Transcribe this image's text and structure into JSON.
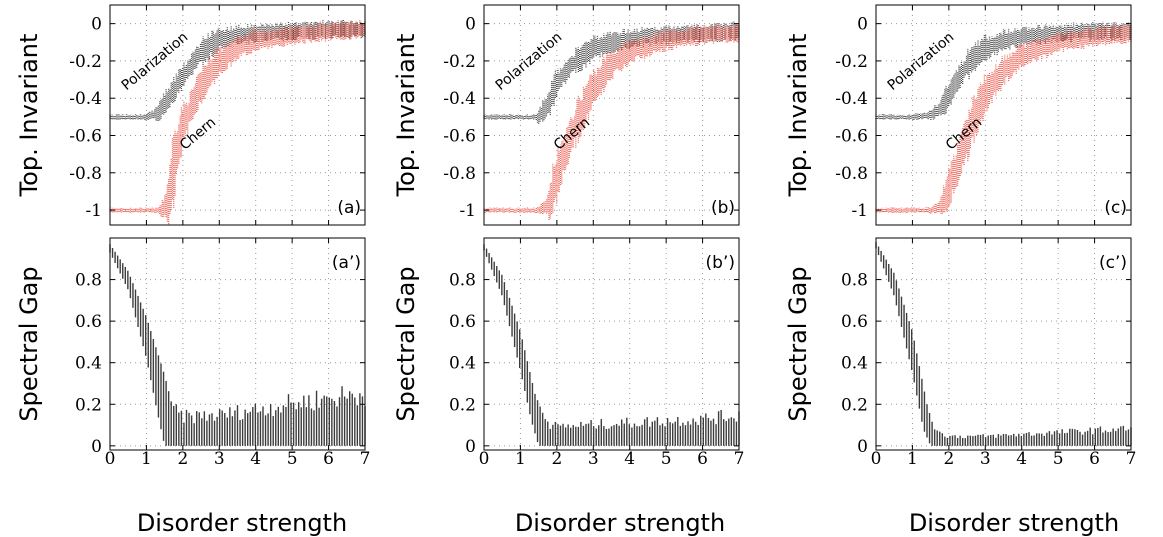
{
  "figure": {
    "xlabel": "Disorder strength"
  },
  "colors": {
    "polarization": "#4a4a4a",
    "chern": "#f0655a",
    "gap": "#3c3c3c",
    "grid": "#9a9a9a"
  },
  "chart_data": [
    {
      "panel": "(a)",
      "type": "scatter",
      "ylabel": "Top. Invariant",
      "xlim": [
        0,
        7
      ],
      "ylim": [
        -1.08,
        0.1
      ],
      "xticks": [
        "0",
        "1",
        "2",
        "3",
        "4",
        "5",
        "6",
        "7"
      ],
      "yticks": [
        "0",
        "-0.2",
        "-0.4",
        "-0.6",
        "-0.8",
        "-1"
      ],
      "annotations": [
        "Polarization",
        "Chern"
      ],
      "grid": true,
      "series": [
        {
          "key": "polarization",
          "x": [
            0,
            0.5,
            1.0,
            1.3,
            1.6,
            2.0,
            2.5,
            3.0,
            3.5,
            4.0,
            5.0,
            6.0,
            7.0
          ],
          "y": [
            -0.5,
            -0.5,
            -0.5,
            -0.48,
            -0.4,
            -0.28,
            -0.15,
            -0.08,
            -0.06,
            -0.05,
            -0.04,
            -0.03,
            -0.03
          ]
        },
        {
          "key": "chern",
          "x": [
            0,
            1.0,
            1.4,
            1.6,
            1.8,
            2.0,
            2.5,
            3.0,
            3.5,
            4.0,
            5.0,
            6.0,
            7.0
          ],
          "y": [
            -1,
            -1,
            -1,
            -0.95,
            -0.72,
            -0.55,
            -0.33,
            -0.2,
            -0.13,
            -0.09,
            -0.06,
            -0.04,
            -0.03
          ]
        }
      ]
    },
    {
      "panel": "(b)",
      "type": "scatter",
      "ylabel": "Top. Invariant",
      "xlim": [
        0,
        7
      ],
      "ylim": [
        -1.08,
        0.1
      ],
      "xticks": [
        "0",
        "1",
        "2",
        "3",
        "4",
        "5",
        "6",
        "7"
      ],
      "yticks": [
        "0",
        "-0.2",
        "-0.4",
        "-0.6",
        "-0.8",
        "-1"
      ],
      "annotations": [
        "Polarization",
        "Chern"
      ],
      "grid": true,
      "series": [
        {
          "key": "polarization",
          "x": [
            0,
            0.5,
            1.0,
            1.5,
            1.8,
            2.0,
            2.5,
            3.0,
            3.5,
            4.0,
            5.0,
            6.0,
            7.0
          ],
          "y": [
            -0.5,
            -0.5,
            -0.5,
            -0.5,
            -0.42,
            -0.32,
            -0.2,
            -0.13,
            -0.1,
            -0.08,
            -0.06,
            -0.05,
            -0.04
          ]
        },
        {
          "key": "chern",
          "x": [
            0,
            1.0,
            1.5,
            1.8,
            2.0,
            2.2,
            2.5,
            3.0,
            3.5,
            4.0,
            5.0,
            6.0,
            7.0
          ],
          "y": [
            -1,
            -1,
            -1,
            -0.97,
            -0.82,
            -0.7,
            -0.55,
            -0.35,
            -0.22,
            -0.15,
            -0.09,
            -0.06,
            -0.05
          ]
        }
      ]
    },
    {
      "panel": "(c)",
      "type": "scatter",
      "ylabel": "Top. Invariant",
      "xlim": [
        0,
        7
      ],
      "ylim": [
        -1.08,
        0.1
      ],
      "xticks": [
        "0",
        "1",
        "2",
        "3",
        "4",
        "5",
        "6",
        "7"
      ],
      "yticks": [
        "0",
        "-0.2",
        "-0.4",
        "-0.6",
        "-0.8",
        "-1"
      ],
      "annotations": [
        "Polarization",
        "Chern"
      ],
      "grid": true,
      "series": [
        {
          "key": "polarization",
          "x": [
            0,
            0.5,
            1.0,
            1.5,
            1.8,
            2.0,
            2.5,
            3.0,
            3.5,
            4.0,
            5.0,
            6.0,
            7.0
          ],
          "y": [
            -0.5,
            -0.5,
            -0.5,
            -0.49,
            -0.45,
            -0.38,
            -0.22,
            -0.13,
            -0.09,
            -0.07,
            -0.05,
            -0.04,
            -0.04
          ]
        },
        {
          "key": "chern",
          "x": [
            0,
            1.0,
            1.5,
            1.8,
            2.0,
            2.3,
            2.6,
            3.0,
            3.5,
            4.0,
            5.0,
            6.0,
            7.0
          ],
          "y": [
            -1,
            -1,
            -1,
            -0.98,
            -0.88,
            -0.72,
            -0.55,
            -0.38,
            -0.25,
            -0.17,
            -0.1,
            -0.07,
            -0.05
          ]
        }
      ]
    },
    {
      "panel": "(a’)",
      "type": "scatter",
      "ylabel": "Spectral Gap",
      "xlim": [
        0,
        7
      ],
      "ylim": [
        -0.02,
        1.0
      ],
      "xticks": [
        "0",
        "1",
        "2",
        "3",
        "4",
        "5",
        "6",
        "7"
      ],
      "yticks": [
        "0.8",
        "0.6",
        "0.4",
        "0.2",
        "0"
      ],
      "grid": true,
      "series": [
        {
          "key": "gap_max",
          "x": [
            0,
            0.5,
            1.0,
            1.5,
            1.7,
            2.0,
            3.0,
            4.0,
            5.0,
            6.0,
            7.0
          ],
          "y": [
            0.97,
            0.84,
            0.62,
            0.34,
            0.2,
            0.15,
            0.16,
            0.19,
            0.22,
            0.25,
            0.27
          ]
        },
        {
          "key": "gap_min",
          "x": [
            0,
            0.5,
            1.0,
            1.3,
            1.5,
            2.0,
            7.0
          ],
          "y": [
            0.93,
            0.75,
            0.42,
            0.16,
            0.0,
            0.0,
            0.0
          ]
        }
      ]
    },
    {
      "panel": "(b’)",
      "type": "scatter",
      "ylabel": "Spectral Gap",
      "xlim": [
        0,
        7
      ],
      "ylim": [
        -0.02,
        1.0
      ],
      "xticks": [
        "0",
        "1",
        "2",
        "3",
        "4",
        "5",
        "6",
        "7"
      ],
      "yticks": [
        "0.8",
        "0.6",
        "0.4",
        "0.2",
        "0"
      ],
      "grid": true,
      "series": [
        {
          "key": "gap_max",
          "x": [
            0,
            0.5,
            1.0,
            1.4,
            1.7,
            2.0,
            3.0,
            4.0,
            5.0,
            6.0,
            7.0
          ],
          "y": [
            0.97,
            0.82,
            0.55,
            0.25,
            0.12,
            0.1,
            0.11,
            0.12,
            0.13,
            0.14,
            0.16
          ]
        },
        {
          "key": "gap_min",
          "x": [
            0,
            0.5,
            1.0,
            1.3,
            1.5,
            2.0,
            7.0
          ],
          "y": [
            0.94,
            0.72,
            0.36,
            0.12,
            0.0,
            0.0,
            0.0
          ]
        }
      ]
    },
    {
      "panel": "(c’)",
      "type": "scatter",
      "ylabel": "Spectral Gap",
      "xlim": [
        0,
        7
      ],
      "ylim": [
        -0.02,
        1.0
      ],
      "xticks": [
        "0",
        "1",
        "2",
        "3",
        "4",
        "5",
        "6",
        "7"
      ],
      "yticks": [
        "0.8",
        "0.6",
        "0.4",
        "0.2",
        "0"
      ],
      "grid": true,
      "series": [
        {
          "key": "gap_max",
          "x": [
            0,
            0.5,
            1.0,
            1.4,
            1.6,
            2.0,
            3.0,
            4.0,
            5.0,
            6.0,
            7.0
          ],
          "y": [
            0.98,
            0.83,
            0.55,
            0.2,
            0.08,
            0.05,
            0.05,
            0.06,
            0.07,
            0.08,
            0.09
          ]
        },
        {
          "key": "gap_min",
          "x": [
            0,
            0.5,
            1.0,
            1.3,
            1.5,
            2.0,
            7.0
          ],
          "y": [
            0.95,
            0.72,
            0.35,
            0.08,
            0.0,
            0.0,
            0.0
          ]
        }
      ]
    }
  ]
}
